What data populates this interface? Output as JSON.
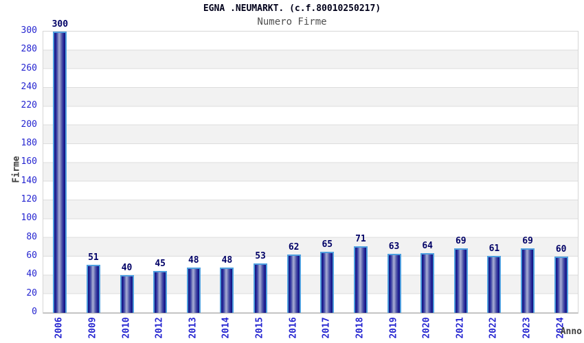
{
  "header": {
    "title": "EGNA .NEUMARKT. (c.f.80010250217)",
    "subtitle": "Numero Firme"
  },
  "chart_data": {
    "type": "bar",
    "title": "EGNA .NEUMARKT. (c.f.80010250217)",
    "subtitle": "Numero Firme",
    "xlabel": "Anno",
    "ylabel": "Firme",
    "categories": [
      "2006",
      "2009",
      "2010",
      "2012",
      "2013",
      "2014",
      "2015",
      "2016",
      "2017",
      "2018",
      "2019",
      "2020",
      "2021",
      "2022",
      "2023",
      "2024"
    ],
    "values": [
      300,
      51,
      40,
      45,
      48,
      48,
      53,
      62,
      65,
      71,
      63,
      64,
      69,
      61,
      69,
      60
    ],
    "ylim": [
      0,
      300
    ],
    "ytick_step": 20,
    "grid": true,
    "legend": "none",
    "band_fill": "alternating"
  },
  "colors": {
    "title": "#00001a",
    "subtitle": "#4d4d4d",
    "axis_title": "#3d3d3d",
    "tick_label": "#2424d0",
    "value_label": "#000066",
    "grid_line": "#dcdcdc",
    "band_a": "#ffffff",
    "band_b": "#f2f2f2",
    "bar_border": "#4f9fdf",
    "bar_edge": "#14146e",
    "bar_highlight": "#a9aed6"
  }
}
